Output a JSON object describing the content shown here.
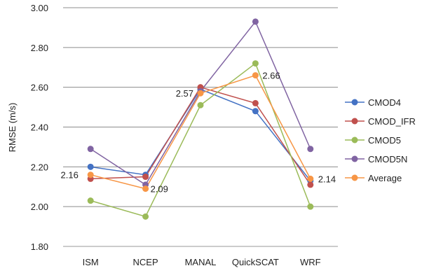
{
  "chart_data": {
    "type": "line",
    "title": "",
    "xlabel": "",
    "ylabel": "RMSE (m/s)",
    "ylim": [
      1.8,
      3.0
    ],
    "yticks": [
      "1.80",
      "2.00",
      "2.20",
      "2.40",
      "2.60",
      "2.80",
      "3.00"
    ],
    "categories": [
      "ISM",
      "NCEP",
      "MANAL",
      "QuickSCAT",
      "WRF"
    ],
    "grid": "horizontal",
    "legend_position": "right",
    "series": [
      {
        "name": "CMOD4",
        "color": "#4472C4",
        "values": [
          2.2,
          2.16,
          2.59,
          2.48,
          2.13
        ]
      },
      {
        "name": "CMOD_IFR",
        "color": "#C0504D",
        "values": [
          2.14,
          2.15,
          2.6,
          2.52,
          2.11
        ]
      },
      {
        "name": "CMOD5",
        "color": "#9BBB59",
        "values": [
          2.03,
          1.95,
          2.51,
          2.72,
          2.0
        ]
      },
      {
        "name": "CMOD5N",
        "color": "#8064A2",
        "values": [
          2.29,
          2.11,
          2.58,
          2.93,
          2.29
        ]
      },
      {
        "name": "Average",
        "color": "#F79646",
        "values": [
          2.16,
          2.09,
          2.57,
          2.66,
          2.14
        ]
      }
    ],
    "data_labels": [
      {
        "series": "Average",
        "category": "ISM",
        "text": "2.16"
      },
      {
        "series": "Average",
        "category": "NCEP",
        "text": "2.09"
      },
      {
        "series": "Average",
        "category": "MANAL",
        "text": "2.57"
      },
      {
        "series": "Average",
        "category": "QuickSCAT",
        "text": "2.66"
      },
      {
        "series": "Average",
        "category": "WRF",
        "text": "2.14"
      }
    ]
  }
}
